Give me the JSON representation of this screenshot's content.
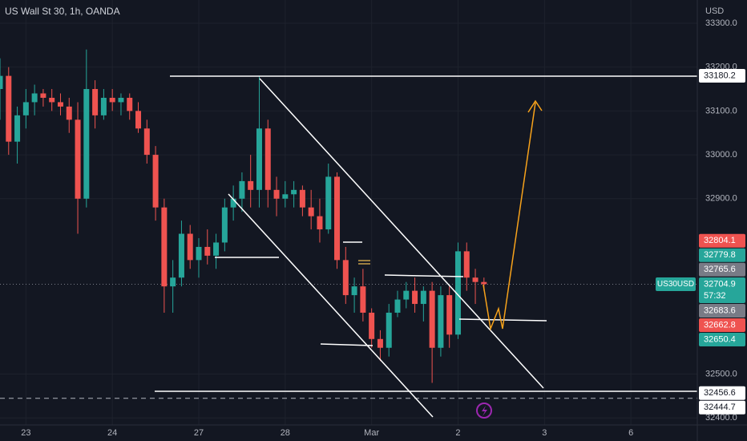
{
  "chart_data": {
    "type": "candlestick",
    "title": "US Wall St 30, 1h, OANDA",
    "currency": "USD",
    "symbol_label": "US30USD",
    "countdown": "57:32",
    "up_color": "#26a69a",
    "down_color": "#ef5350",
    "xlim": [
      -0.3,
      7.75
    ],
    "xticks": [
      {
        "value": 0,
        "label": "23"
      },
      {
        "value": 1,
        "label": "24"
      },
      {
        "value": 2,
        "label": "27"
      },
      {
        "value": 3,
        "label": "28"
      },
      {
        "value": 4,
        "label": "Mar"
      },
      {
        "value": 5,
        "label": "2"
      },
      {
        "value": 6,
        "label": "3"
      },
      {
        "value": 7,
        "label": "6"
      }
    ],
    "ylim": [
      32384,
      33353
    ],
    "yticks": [
      {
        "value": 33300,
        "label": "33300.0"
      },
      {
        "value": 33200,
        "label": "33200.0"
      },
      {
        "value": 33100,
        "label": "33100.0"
      },
      {
        "value": 33000,
        "label": "33000.0"
      },
      {
        "value": 32900,
        "label": "32900.0"
      },
      {
        "value": 32500,
        "label": "32500.0"
      },
      {
        "value": 32400,
        "label": "32400.0"
      }
    ],
    "grid": true,
    "x": [
      -0.3,
      -0.2,
      -0.1,
      0,
      0.1,
      0.2,
      0.3,
      0.4,
      0.5,
      0.6,
      0.7,
      0.8,
      0.9,
      1,
      1.1,
      1.2,
      1.3,
      1.4,
      1.5,
      1.6,
      1.7,
      1.8,
      1.9,
      2,
      2.1,
      2.2,
      2.3,
      2.4,
      2.5,
      2.6,
      2.7,
      2.8,
      2.9,
      3,
      3.1,
      3.2,
      3.3,
      3.4,
      3.5,
      3.6,
      3.7,
      3.8,
      3.9,
      4,
      4.1,
      4.2,
      4.3,
      4.4,
      4.5,
      4.6,
      4.7,
      4.8,
      4.9,
      5,
      5.1,
      5.2,
      5.3
    ],
    "open": [
      33150,
      33180,
      33030,
      33090,
      33120,
      33140,
      33130,
      33120,
      33110,
      33080,
      32900,
      33150,
      33090,
      33130,
      33120,
      33130,
      33100,
      33060,
      33000,
      32880,
      32700,
      32720,
      32820,
      32760,
      32790,
      32770,
      32800,
      32880,
      32900,
      32940,
      32920,
      33060,
      32920,
      32900,
      32910,
      32920,
      32880,
      32860,
      32830,
      32950,
      32760,
      32680,
      32700,
      32640,
      32580,
      32560,
      32640,
      32670,
      32690,
      32660,
      32690,
      32560,
      32680,
      32590,
      32780,
      32720,
      32710
    ],
    "high": [
      33220,
      33200,
      33110,
      33150,
      33160,
      33150,
      33150,
      33140,
      33130,
      33120,
      33240,
      33170,
      33150,
      33150,
      33140,
      33140,
      33120,
      33080,
      33020,
      32900,
      32760,
      32850,
      32840,
      32810,
      32830,
      32820,
      32900,
      32930,
      32960,
      33000,
      33180,
      33080,
      32950,
      32940,
      32940,
      32930,
      32920,
      32900,
      32980,
      32960,
      32790,
      32720,
      32740,
      32650,
      32600,
      32660,
      32690,
      32710,
      32720,
      32700,
      32710,
      32700,
      32700,
      32800,
      32800,
      32740,
      32720
    ],
    "low": [
      33080,
      33000,
      32980,
      33060,
      33090,
      33110,
      33100,
      33090,
      33050,
      32820,
      32880,
      33060,
      33080,
      33100,
      33090,
      33080,
      33050,
      32980,
      32850,
      32640,
      32640,
      32700,
      32740,
      32720,
      32750,
      32740,
      32780,
      32850,
      32870,
      32880,
      32880,
      32880,
      32860,
      32880,
      32880,
      32860,
      32830,
      32800,
      32820,
      32740,
      32660,
      32640,
      32620,
      32560,
      32530,
      32540,
      32630,
      32650,
      32640,
      32620,
      32480,
      32540,
      32560,
      32580,
      32690,
      32660,
      32690
    ],
    "close": [
      33180,
      33030,
      33090,
      33120,
      33140,
      33130,
      33120,
      33110,
      33080,
      32900,
      33150,
      33090,
      33130,
      33120,
      33130,
      33100,
      33060,
      33000,
      32880,
      32700,
      32720,
      32820,
      32760,
      32790,
      32770,
      32800,
      32880,
      32900,
      32940,
      32920,
      33060,
      32920,
      32900,
      32910,
      32920,
      32880,
      32860,
      32830,
      32950,
      32760,
      32680,
      32700,
      32640,
      32580,
      32560,
      32640,
      32670,
      32690,
      32660,
      32690,
      32560,
      32680,
      32590,
      32780,
      32720,
      32710,
      32705
    ],
    "current_price": 32704.9,
    "price_tags": [
      {
        "value": 33180.2,
        "bg": "#ffffff",
        "fg": "#131722"
      },
      {
        "value": 32804.1,
        "bg": "#ef5350",
        "fg": "#ffffff"
      },
      {
        "value": 32779.8,
        "bg": "#26a69a",
        "fg": "#ffffff"
      },
      {
        "value": 32765.6,
        "bg": "#787b86",
        "fg": "#ffffff"
      },
      {
        "value": 32704.9,
        "bg": "#26a69a",
        "fg": "#ffffff"
      },
      {
        "value": 32683.6,
        "bg": "#787b86",
        "fg": "#ffffff"
      },
      {
        "value": 32662.8,
        "bg": "#ef5350",
        "fg": "#ffffff"
      },
      {
        "value": 32650.4,
        "bg": "#26a69a",
        "fg": "#ffffff"
      },
      {
        "value": 32456.6,
        "bg": "#ffffff",
        "fg": "#131722"
      },
      {
        "value": 32444.7,
        "bg": "#ffffff",
        "fg": "#131722"
      }
    ]
  }
}
